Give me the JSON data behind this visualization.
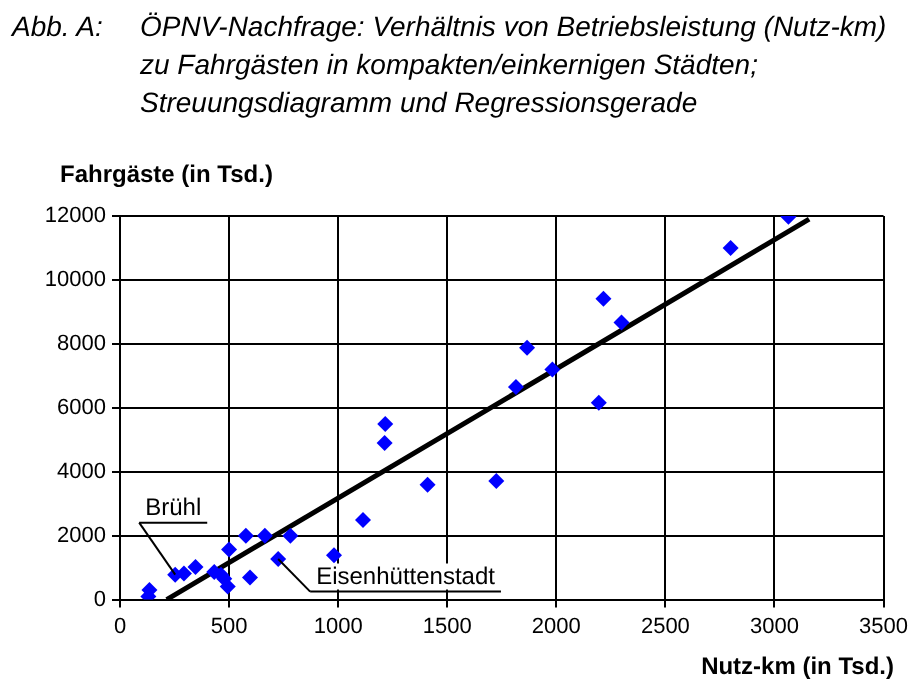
{
  "chart_data": {
    "type": "scatter",
    "title": "ÖPNV-Nachfrage: Verhältnis von Betriebsleistung (Nutz-km) zu Fahrgästen in kompakten/einkernigen Städten; Streuungsdiagramm und Regressionsgerade",
    "xlabel": "Nutz-km (in Tsd.)",
    "ylabel": "Fahrgäste (in Tsd.)",
    "annotations": [
      "Abb. A:",
      {
        "text": "Brühl",
        "x": 253,
        "y": 780
      },
      {
        "text": "Eisenhüttenstadt",
        "x": 725,
        "y": 1270
      }
    ],
    "series": [
      {
        "color": "#0000ff",
        "marker": "diamond",
        "x": [
          130,
          135,
          253,
          293,
          346,
          432,
          463,
          478,
          494,
          500,
          596,
          577,
          664,
          781,
          725,
          981,
          1114,
          1213,
          1216,
          1410,
          1725,
          1815,
          1866,
          1982,
          2195,
          2216,
          2299,
          2799,
          3064
        ],
        "values": [
          100,
          300,
          780,
          820,
          1020,
          860,
          780,
          650,
          410,
          1570,
          690,
          2000,
          2000,
          2000,
          1270,
          1390,
          2490,
          4900,
          5490,
          3590,
          3710,
          6650,
          7880,
          7200,
          6160,
          9410,
          8670,
          11000,
          11980
        ]
      },
      {
        "type": "line",
        "color": "#000000",
        "marker": "none",
        "x": [
          214,
          3159
        ],
        "values": [
          0,
          11900
        ]
      }
    ],
    "xlim": [
      0,
      3500
    ],
    "xticks": [
      0,
      500,
      1000,
      1500,
      2000,
      2500,
      3000,
      3500
    ],
    "ylim": [
      0,
      12000
    ],
    "yticks": [
      0,
      2000,
      4000,
      6000,
      8000,
      10000,
      12000
    ],
    "grid": true,
    "legend": false
  }
}
